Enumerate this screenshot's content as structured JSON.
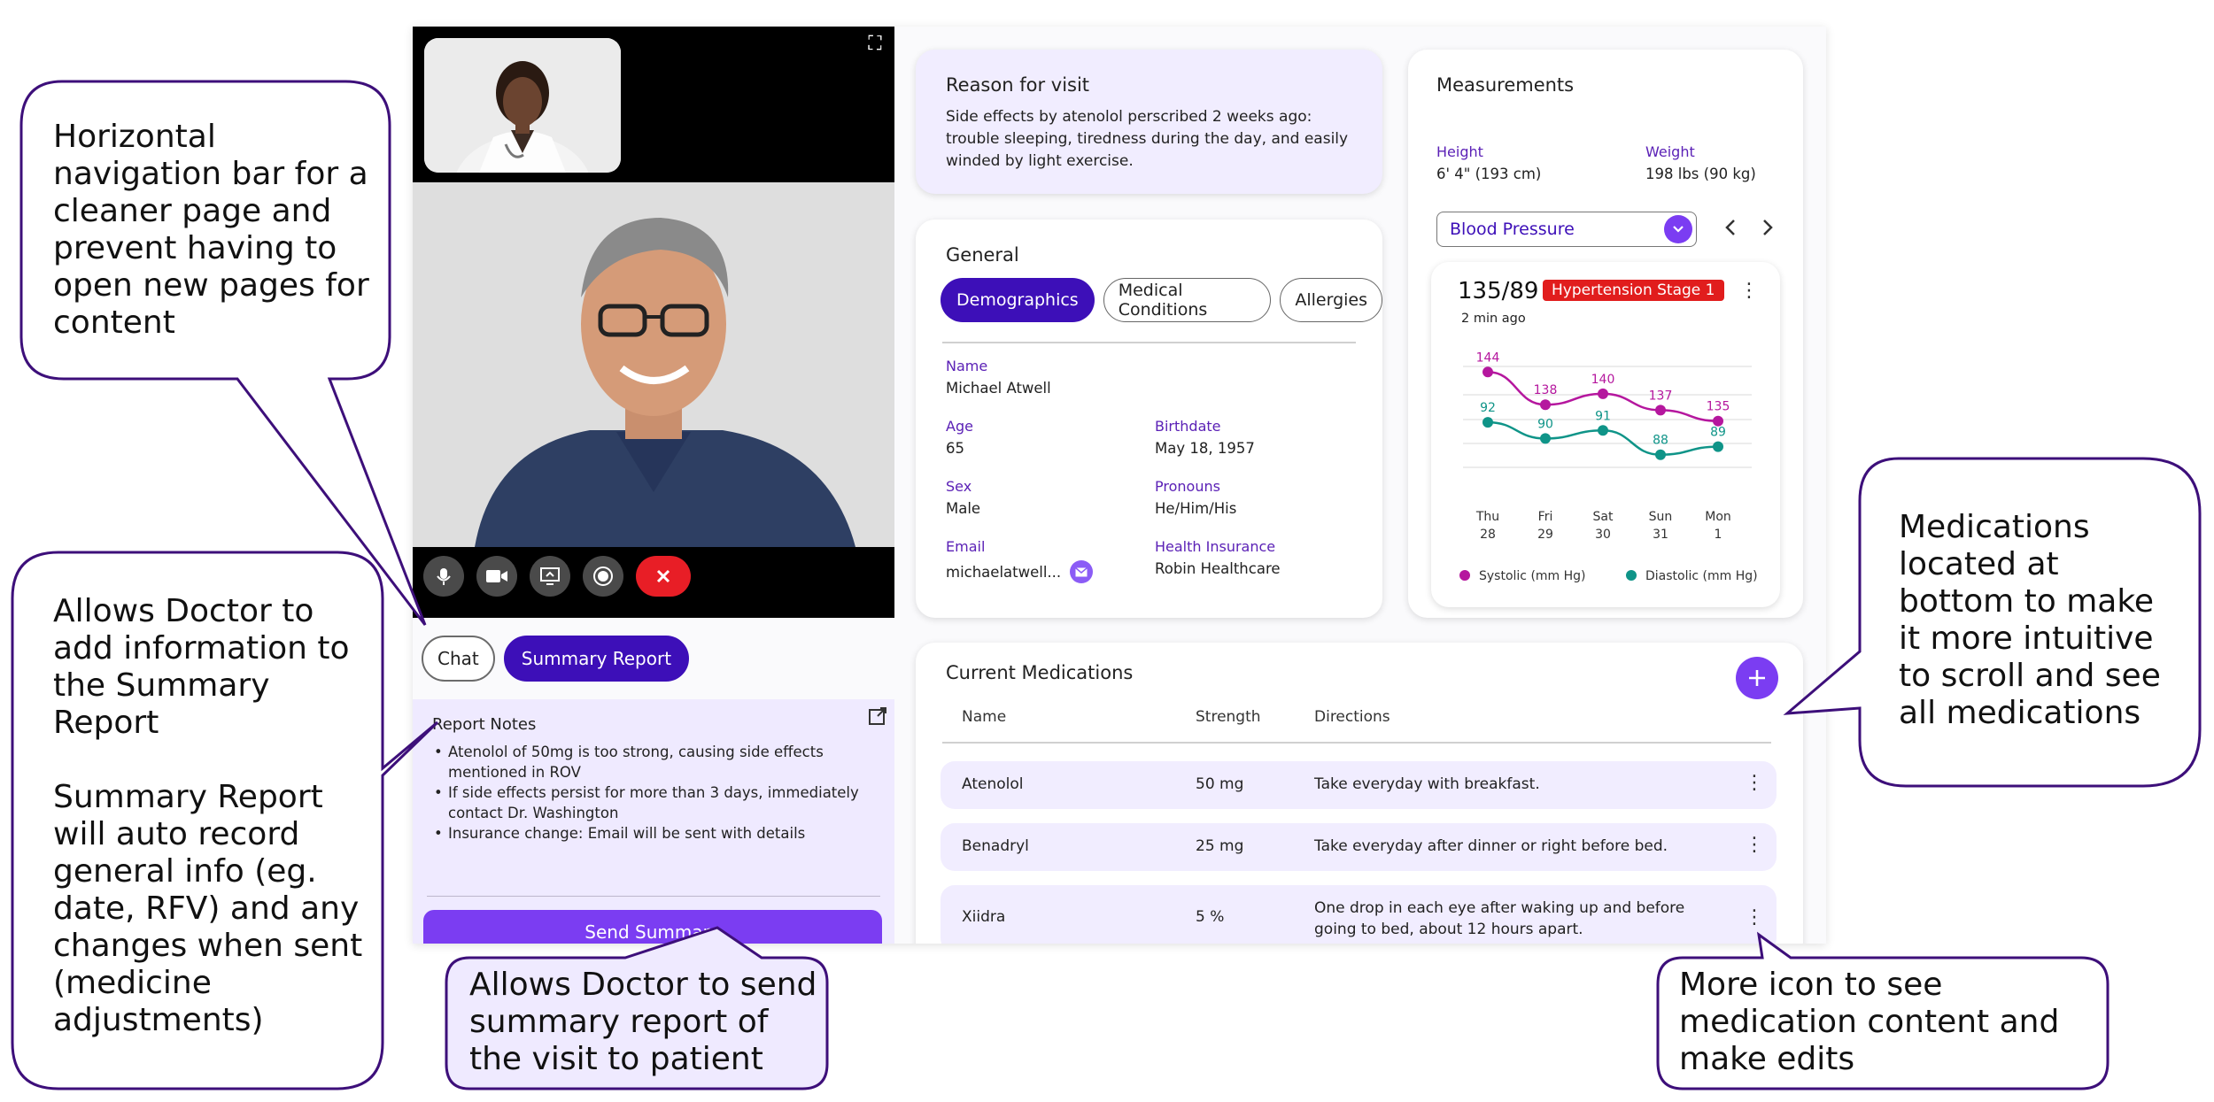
{
  "call": {
    "controls": [
      "mic-icon",
      "camera-icon",
      "screen-share-icon",
      "record-icon",
      "end-call-icon"
    ]
  },
  "left_tabs": {
    "chat": "Chat",
    "summary": "Summary Report"
  },
  "report_notes": {
    "title": "Report Notes",
    "items": [
      "Atenolol of 50mg is too strong, causing side effects mentioned in ROV",
      "If side effects persist for more than 3 days, immediately contact Dr. Washington",
      "Insurance change: Email will be sent with details"
    ],
    "send_button": "Send Summary"
  },
  "reason_for_visit": {
    "title": "Reason for visit",
    "text": "Side effects by atenolol perscribed 2 weeks ago: trouble sleeping, tiredness during the day, and easily winded by light exercise."
  },
  "general": {
    "title": "General",
    "tabs": [
      "Demographics",
      "Medical Conditions",
      "Allergies"
    ],
    "fields": {
      "name_label": "Name",
      "name": "Michael Atwell",
      "age_label": "Age",
      "age": "65",
      "birthdate_label": "Birthdate",
      "birthdate": "May 18, 1957",
      "sex_label": "Sex",
      "sex": "Male",
      "pronouns_label": "Pronouns",
      "pronouns": "He/Him/His",
      "email_label": "Email",
      "email": "michaelatwell...",
      "insurance_label": "Health Insurance",
      "insurance": "Robin Healthcare"
    }
  },
  "measurements": {
    "title": "Measurements",
    "height_label": "Height",
    "height": "6' 4\" (193 cm)",
    "weight_label": "Weight",
    "weight": "198 lbs (90 kg)",
    "select": "Blood Pressure",
    "reading": "135/89",
    "badge": "Hypertension Stage 1",
    "time": "2 min ago"
  },
  "chart_data": {
    "type": "line",
    "categories": [
      [
        "Thu",
        "28"
      ],
      [
        "Fri",
        "29"
      ],
      [
        "Sat",
        "30"
      ],
      [
        "Sun",
        "31"
      ],
      [
        "Mon",
        "1"
      ]
    ],
    "series": [
      {
        "name": "Systolic (mm Hg)",
        "values": [
          144,
          138,
          140,
          137,
          135
        ],
        "color": "#b5179e"
      },
      {
        "name": "Diastolic (mm Hg)",
        "values": [
          92,
          90,
          91,
          88,
          89
        ],
        "color": "#0f9488"
      }
    ],
    "legend": "bottom",
    "grid": true
  },
  "medications": {
    "title": "Current Medications",
    "headers": {
      "name": "Name",
      "strength": "Strength",
      "directions": "Directions"
    },
    "rows": [
      {
        "name": "Atenolol",
        "strength": "50 mg",
        "directions": "Take everyday with breakfast."
      },
      {
        "name": "Benadryl",
        "strength": "25 mg",
        "directions": "Take everyday after dinner or right before bed."
      },
      {
        "name": "Xiidra",
        "strength": "5 %",
        "directions": "One drop in each eye after waking up and before going to bed, about 12 hours apart."
      }
    ]
  },
  "callouts": {
    "nav": "Horizontal navigation bar for a cleaner page and prevent having to open new pages for content",
    "summary": "Allows Doctor to add information to the Summary Report\n\nSummary Report will auto record general info (eg. date, RFV) and any changes when sent (medicine adjustments)",
    "send": "Allows Doctor to send summary report of the visit to patient",
    "meds": "Medications located at bottom to make it more intuitive to scroll and see all medications",
    "more": "More icon to see medication content and make edits"
  },
  "colors": {
    "accent": "#7b3df2",
    "active": "#3d0fb8",
    "label": "#5b21b6",
    "alert": "#e11d1d",
    "lavender": "#f1edff"
  }
}
